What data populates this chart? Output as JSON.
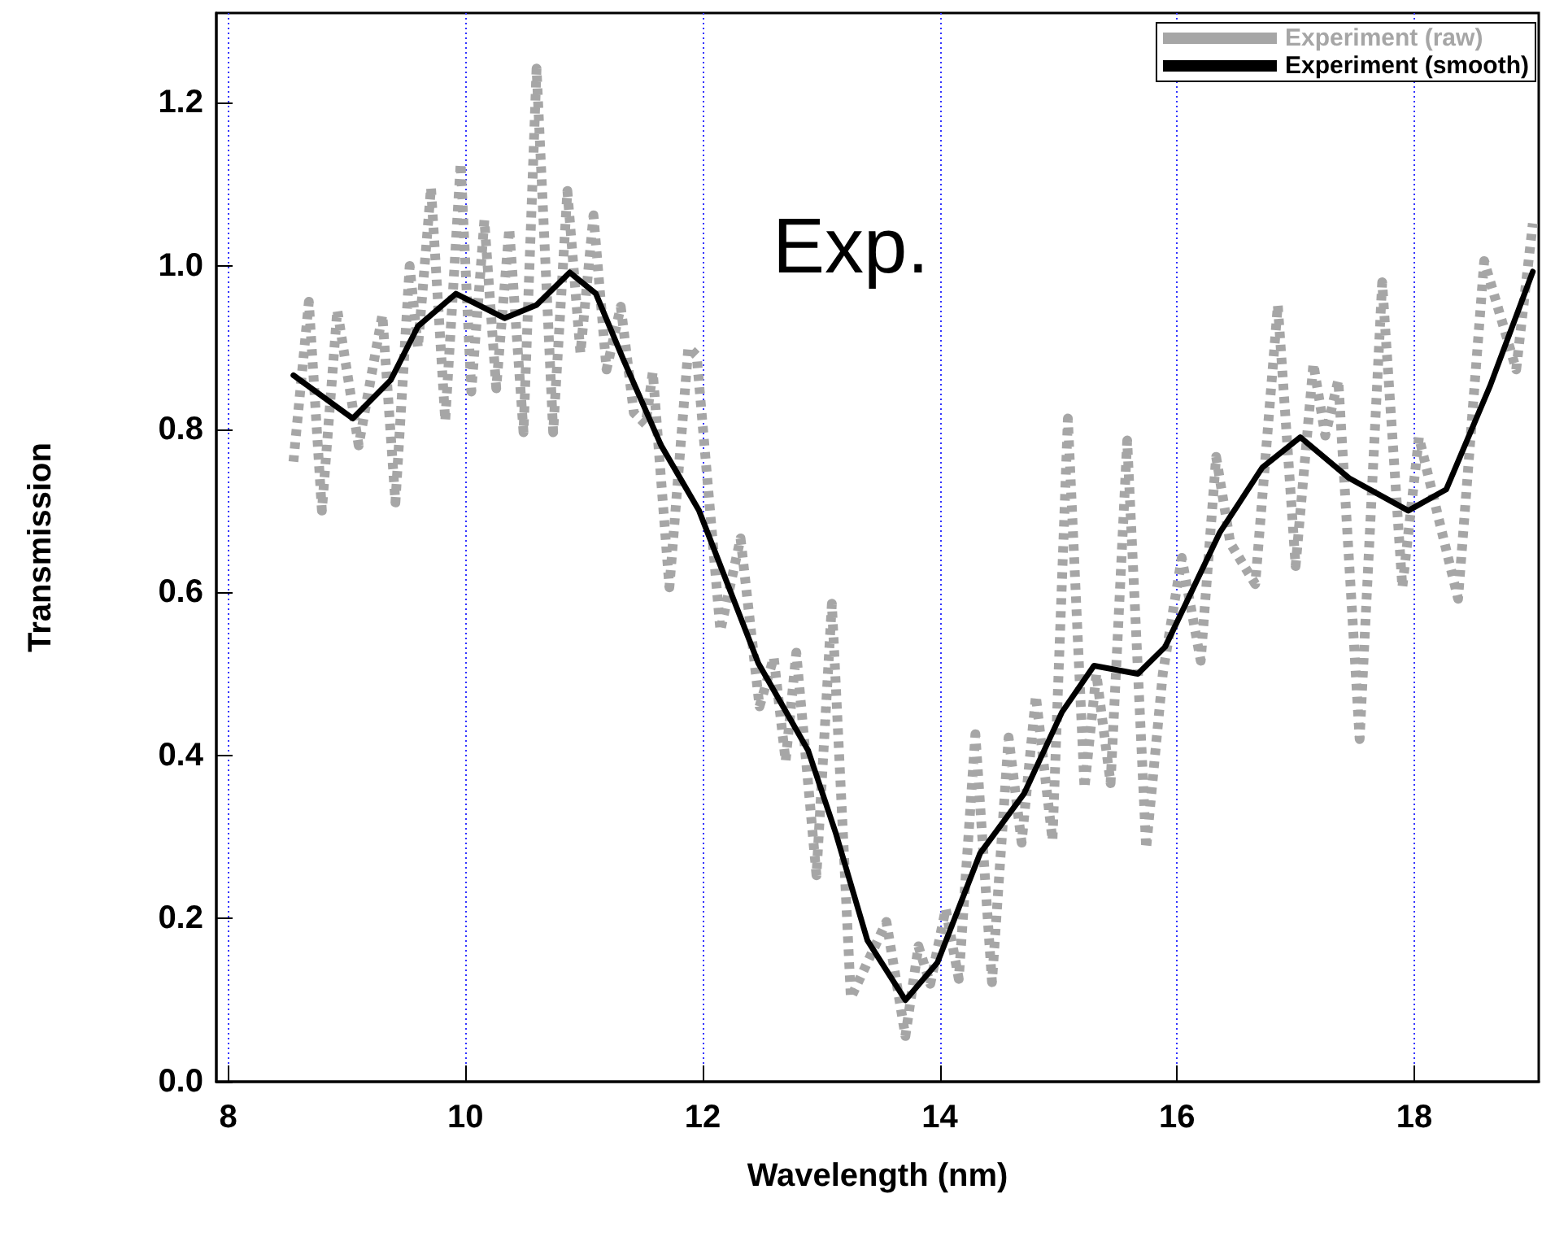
{
  "chart_data": {
    "type": "line",
    "xlabel": "Wavelength (nm)",
    "ylabel": "Transmission",
    "annotations": [
      "Exp."
    ],
    "xlim": [
      7.9,
      19.05
    ],
    "xticks": [
      8,
      10,
      12,
      14,
      16,
      18
    ],
    "ylim": [
      0,
      1.31
    ],
    "yticks": [
      {
        "value": 0,
        "label": "0.0"
      },
      {
        "value": 0.2,
        "label": "0.2"
      },
      {
        "value": 0.4,
        "label": "0.4"
      },
      {
        "value": 0.6,
        "label": "0.6"
      },
      {
        "value": 0.8,
        "label": "0.8"
      },
      {
        "value": 1.0,
        "label": "1.0"
      },
      {
        "value": 1.2,
        "label": "1.2"
      }
    ],
    "grid": "x",
    "legend": "top right",
    "marker": "none",
    "series": [
      {
        "name": "Experiment (raw)",
        "color": "#a6a6a6",
        "line_style": "dotted",
        "x": [
          8.55,
          8.68,
          8.79,
          8.92,
          9.1,
          9.3,
          9.41,
          9.53,
          9.6,
          9.71,
          9.83,
          9.96,
          10.05,
          10.16,
          10.26,
          10.37,
          10.49,
          10.6,
          10.74,
          10.86,
          10.97,
          11.08,
          11.19,
          11.31,
          11.42,
          11.52,
          11.58,
          11.72,
          11.88,
          11.95,
          12.15,
          12.32,
          12.48,
          12.6,
          12.7,
          12.79,
          12.96,
          13.09,
          13.25,
          13.55,
          13.71,
          13.82,
          13.92,
          14.05,
          14.16,
          14.3,
          14.44,
          14.58,
          14.69,
          14.81,
          14.95,
          15.08,
          15.22,
          15.32,
          15.44,
          15.58,
          15.74,
          15.88,
          16.04,
          16.2,
          16.33,
          16.45,
          16.66,
          16.85,
          17.0,
          17.15,
          17.25,
          17.36,
          17.54,
          17.73,
          17.9,
          18.04,
          18.37,
          18.59,
          18.86,
          19.0
        ],
        "values": [
          0.76,
          0.956,
          0.7,
          0.946,
          0.78,
          0.94,
          0.71,
          1.0,
          0.9,
          1.096,
          0.81,
          1.126,
          0.846,
          1.056,
          0.85,
          1.046,
          0.796,
          1.242,
          0.796,
          1.092,
          0.893,
          1.062,
          0.873,
          0.95,
          0.82,
          0.806,
          0.87,
          0.606,
          0.9,
          0.89,
          0.553,
          0.666,
          0.46,
          0.52,
          0.393,
          0.526,
          0.253,
          0.586,
          0.103,
          0.196,
          0.056,
          0.166,
          0.12,
          0.212,
          0.126,
          0.426,
          0.122,
          0.422,
          0.293,
          0.473,
          0.296,
          0.813,
          0.36,
          0.5,
          0.366,
          0.786,
          0.286,
          0.5,
          0.642,
          0.516,
          0.766,
          0.66,
          0.61,
          0.952,
          0.632,
          0.88,
          0.792,
          0.86,
          0.42,
          0.98,
          0.606,
          0.79,
          0.592,
          1.006,
          0.873,
          1.052
        ]
      },
      {
        "name": "Experiment (smooth)",
        "color": "#000000",
        "line_style": "solid",
        "x": [
          8.55,
          9.05,
          9.37,
          9.6,
          9.92,
          10.33,
          10.6,
          10.88,
          11.1,
          11.33,
          11.65,
          11.97,
          12.47,
          12.89,
          13.12,
          13.39,
          13.71,
          13.98,
          14.34,
          14.71,
          15.03,
          15.3,
          15.67,
          15.9,
          16.36,
          16.72,
          17.04,
          17.45,
          17.95,
          18.27,
          18.64,
          19.0
        ],
        "values": [
          0.866,
          0.813,
          0.86,
          0.926,
          0.966,
          0.936,
          0.952,
          0.992,
          0.966,
          0.886,
          0.78,
          0.7,
          0.513,
          0.406,
          0.306,
          0.173,
          0.1,
          0.146,
          0.28,
          0.353,
          0.453,
          0.51,
          0.5,
          0.533,
          0.673,
          0.753,
          0.79,
          0.74,
          0.7,
          0.726,
          0.853,
          0.993
        ]
      }
    ]
  }
}
